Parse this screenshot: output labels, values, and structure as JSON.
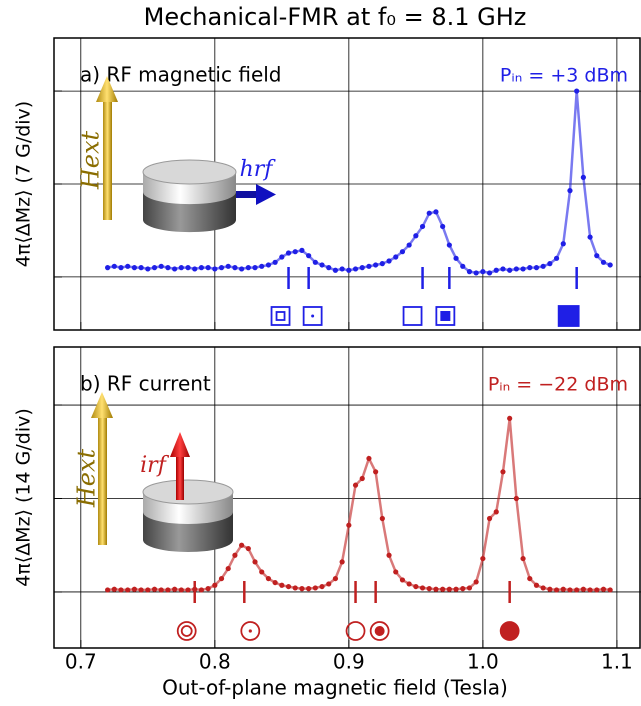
{
  "figure": {
    "title": "Mechanical-FMR at f₀ = 8.1 GHz",
    "x_label": "Out-of-plane magnetic field (Tesla)"
  },
  "chart_data": [
    {
      "type": "line",
      "panel_label": "a) RF magnetic field",
      "power_label": "Pᵢₙ = +3 dBm",
      "y_label": "4π⟨ΔMz⟩ (7 G/div)",
      "field_label": "Hext",
      "drive_label": "hrf",
      "color": "#1f1fe6",
      "x": [
        0.72,
        0.725,
        0.73,
        0.735,
        0.74,
        0.745,
        0.75,
        0.755,
        0.76,
        0.765,
        0.77,
        0.775,
        0.78,
        0.785,
        0.79,
        0.795,
        0.8,
        0.805,
        0.81,
        0.815,
        0.82,
        0.825,
        0.83,
        0.835,
        0.84,
        0.845,
        0.85,
        0.855,
        0.86,
        0.865,
        0.87,
        0.875,
        0.88,
        0.885,
        0.89,
        0.895,
        0.9,
        0.905,
        0.91,
        0.915,
        0.92,
        0.925,
        0.93,
        0.935,
        0.94,
        0.945,
        0.95,
        0.955,
        0.96,
        0.965,
        0.97,
        0.975,
        0.98,
        0.985,
        0.99,
        0.995,
        1.0,
        1.005,
        1.01,
        1.015,
        1.02,
        1.025,
        1.03,
        1.035,
        1.04,
        1.045,
        1.05,
        1.055,
        1.06,
        1.065,
        1.07,
        1.075,
        1.08,
        1.085,
        1.09,
        1.095
      ],
      "values": [
        0.7,
        0.8,
        0.7,
        0.8,
        0.7,
        0.7,
        0.6,
        0.7,
        0.8,
        0.7,
        0.6,
        0.7,
        0.7,
        0.6,
        0.7,
        0.7,
        0.6,
        0.7,
        0.8,
        0.7,
        0.6,
        0.7,
        0.7,
        0.8,
        0.9,
        1.1,
        1.5,
        1.8,
        1.9,
        2.0,
        1.6,
        1.1,
        0.9,
        0.7,
        0.5,
        0.6,
        0.5,
        0.6,
        0.7,
        0.8,
        0.9,
        1.0,
        1.2,
        1.5,
        1.9,
        2.4,
        3.1,
        3.8,
        4.8,
        4.9,
        3.8,
        2.4,
        1.4,
        0.8,
        0.4,
        0.3,
        0.4,
        0.3,
        0.5,
        0.6,
        0.5,
        0.6,
        0.6,
        0.7,
        0.7,
        0.8,
        1.0,
        1.4,
        2.5,
        6.5,
        14.0,
        7.5,
        3.0,
        1.6,
        1.1,
        0.9
      ],
      "mode_positions": [
        0.855,
        0.87,
        0.955,
        0.975,
        1.07
      ],
      "xlim": [
        0.68,
        1.118
      ],
      "ylim": [
        -4,
        18
      ],
      "xticks": [
        0.7,
        0.8,
        0.9,
        {
          "value": 1,
          "label": "1.0"
        },
        1.1
      ],
      "yticks": [
        0,
        7,
        14
      ],
      "grid": true
    },
    {
      "type": "line",
      "panel_label": "b) RF current",
      "power_label": "Pᵢₙ = −22 dBm",
      "y_label": "4π⟨ΔMz⟩ (14 G/div)",
      "field_label": "Hext",
      "drive_label": "irf",
      "color": "#c02020",
      "x": [
        0.72,
        0.725,
        0.73,
        0.735,
        0.74,
        0.745,
        0.75,
        0.755,
        0.76,
        0.765,
        0.77,
        0.775,
        0.78,
        0.785,
        0.79,
        0.795,
        0.8,
        0.805,
        0.81,
        0.815,
        0.82,
        0.825,
        0.83,
        0.835,
        0.84,
        0.845,
        0.85,
        0.855,
        0.86,
        0.865,
        0.87,
        0.875,
        0.88,
        0.885,
        0.89,
        0.895,
        0.9,
        0.905,
        0.91,
        0.915,
        0.92,
        0.925,
        0.93,
        0.935,
        0.94,
        0.945,
        0.95,
        0.955,
        0.96,
        0.965,
        0.97,
        0.975,
        0.98,
        0.985,
        0.99,
        0.995,
        1.0,
        1.005,
        1.01,
        1.015,
        1.02,
        1.025,
        1.03,
        1.035,
        1.04,
        1.045,
        1.05,
        1.055,
        1.06,
        1.065,
        1.07,
        1.075,
        1.08,
        1.085,
        1.09,
        1.095
      ],
      "values": [
        0.3,
        0.4,
        0.3,
        0.3,
        0.4,
        0.3,
        0.3,
        0.4,
        0.3,
        0.3,
        0.4,
        0.3,
        0.3,
        0.4,
        0.3,
        0.5,
        1.0,
        2.0,
        3.5,
        5.5,
        7.0,
        6.5,
        4.5,
        3.0,
        2.0,
        1.4,
        1.0,
        0.8,
        0.6,
        0.5,
        0.5,
        0.6,
        0.8,
        1.2,
        2.0,
        4.5,
        10,
        16,
        17,
        20,
        18,
        11,
        5.5,
        3.0,
        1.8,
        1.2,
        0.8,
        0.6,
        0.5,
        0.4,
        0.4,
        0.4,
        0.4,
        0.5,
        0.6,
        1.5,
        5.0,
        11,
        12,
        18,
        26,
        14,
        5,
        2,
        1,
        0.6,
        0.4,
        0.3,
        0.4,
        0.3,
        0.3,
        0.4,
        0.3,
        0.3,
        0.4,
        0.3
      ],
      "mode_positions": [
        0.785,
        0.822,
        0.905,
        0.92,
        1.02
      ],
      "xlim": [
        0.68,
        1.118
      ],
      "ylim": [
        -8.4,
        36.7
      ],
      "xticks": [
        0.7,
        0.8,
        0.9,
        {
          "value": 1,
          "label": "1.0"
        },
        1.1
      ],
      "yticks": [
        0,
        14,
        28
      ],
      "grid": true
    }
  ]
}
